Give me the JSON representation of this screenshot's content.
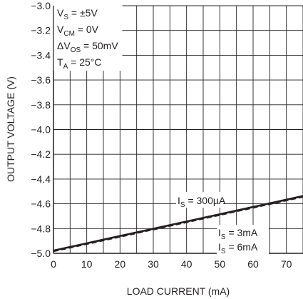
{
  "chart_data": {
    "type": "line",
    "title": "",
    "xlabel": "LOAD CURRENT (mA)",
    "ylabel": "OUTPUT VOLTAGE (V)",
    "xlim": [
      0,
      75
    ],
    "ylim": [
      -5.0,
      -3.0
    ],
    "grid": true,
    "x_ticks": [
      0,
      10,
      20,
      30,
      40,
      50,
      60,
      70
    ],
    "x_tick_labels": [
      "0",
      "10",
      "20",
      "30",
      "40",
      "50",
      "60",
      "70"
    ],
    "y_ticks": [
      -3.0,
      -3.2,
      -3.4,
      -3.6,
      -3.8,
      -4.0,
      -4.2,
      -4.4,
      -4.6,
      -4.8,
      -5.0
    ],
    "y_tick_labels": [
      "−3.0",
      "−3.2",
      "−3.4",
      "−3.6",
      "−3.8",
      "−4.0",
      "−4.2",
      "−4.4",
      "−4.6",
      "−4.8",
      "−5.0"
    ],
    "conditions": {
      "vs": {
        "main": "V",
        "sub": "S",
        "rest": " = ±5V"
      },
      "vcm": {
        "main": "V",
        "sub": "CM",
        "rest": " = 0V"
      },
      "dvos": {
        "main": "ΔV",
        "sub": "OS",
        "rest": " = 50mV"
      },
      "ta": {
        "main": "T",
        "sub": "A",
        "rest": " = 25°C"
      }
    },
    "series": [
      {
        "label_main": "I",
        "label_sub": "S",
        "label_rest": " = 300µA",
        "dash": "solid",
        "x": [
          0,
          75
        ],
        "y": [
          -4.975,
          -4.535
        ]
      },
      {
        "label_main": "I",
        "label_sub": "S",
        "label_rest": " = 3mA",
        "dash": "solid",
        "x": [
          0,
          75
        ],
        "y": [
          -4.98,
          -4.54
        ]
      },
      {
        "label_main": "I",
        "label_sub": "S",
        "label_rest": " = 6mA",
        "dash": "dashed",
        "x": [
          0,
          75
        ],
        "y": [
          -4.985,
          -4.545
        ]
      }
    ],
    "colors": {
      "line": "#231f20",
      "grid": "#231f20",
      "background": "#ffffff"
    }
  }
}
